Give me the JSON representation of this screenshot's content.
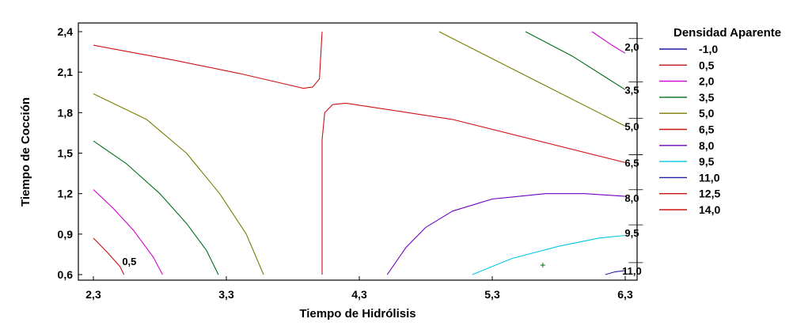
{
  "chart_data": {
    "type": "contour",
    "title": "",
    "xlabel": "Tiempo de Hidrólisis",
    "ylabel": "Tiempo de Cocción",
    "xlim": [
      2.3,
      6.3
    ],
    "ylim": [
      0.6,
      2.4
    ],
    "x_ticks": [
      "2,3",
      "3,3",
      "4,3",
      "5,3",
      "6,3"
    ],
    "x_tick_values": [
      2.3,
      3.3,
      4.3,
      5.3,
      6.3
    ],
    "y_ticks": [
      "2,4",
      "2,1",
      "1,8",
      "1,5",
      "1,2",
      "0,9",
      "0,6"
    ],
    "y_tick_values": [
      2.4,
      2.1,
      1.8,
      1.5,
      1.2,
      0.9,
      0.6
    ],
    "legend": {
      "title": "Densidad Aparente",
      "position": "right",
      "entries": [
        {
          "label": "-1,0",
          "color": "#1a1aa0"
        },
        {
          "label": "0,5",
          "color": "#cc1111"
        },
        {
          "label": "2,0",
          "color": "#d000d0"
        },
        {
          "label": "3,5",
          "color": "#006e1a"
        },
        {
          "label": "5,0",
          "color": "#7a7a00"
        },
        {
          "label": "6,5",
          "color": "#cc1111"
        },
        {
          "label": "8,0",
          "color": "#7000c0"
        },
        {
          "label": "9,5",
          "color": "#00c8e6"
        },
        {
          "label": "11,0",
          "color": "#2020b0"
        },
        {
          "label": "12,5",
          "color": "#cc1111"
        },
        {
          "label": "14,0",
          "color": "#cc1111"
        }
      ]
    },
    "contours": [
      {
        "level": "0,5",
        "color": "#cc1111",
        "points": [
          [
            2.3,
            0.87
          ],
          [
            2.4,
            0.77
          ],
          [
            2.5,
            0.66
          ],
          [
            2.53,
            0.6
          ]
        ]
      },
      {
        "level": "2,0",
        "color": "#d000d0",
        "points": [
          [
            2.3,
            1.23
          ],
          [
            2.45,
            1.09
          ],
          [
            2.6,
            0.93
          ],
          [
            2.75,
            0.73
          ],
          [
            2.82,
            0.6
          ]
        ]
      },
      {
        "level": "3,5",
        "color": "#006e1a",
        "points": [
          [
            2.3,
            1.59
          ],
          [
            2.55,
            1.42
          ],
          [
            2.8,
            1.2
          ],
          [
            3.0,
            0.98
          ],
          [
            3.15,
            0.78
          ],
          [
            3.24,
            0.6
          ]
        ]
      },
      {
        "level": "5,0",
        "color": "#7a7a00",
        "points": [
          [
            2.3,
            1.94
          ],
          [
            2.7,
            1.75
          ],
          [
            3.0,
            1.5
          ],
          [
            3.25,
            1.2
          ],
          [
            3.45,
            0.9
          ],
          [
            3.58,
            0.6
          ]
        ]
      },
      {
        "level": "6,5",
        "color": "#cc1111",
        "points": [
          [
            2.3,
            2.3
          ],
          [
            2.9,
            2.19
          ],
          [
            3.4,
            2.09
          ],
          [
            3.75,
            2.01
          ],
          [
            3.88,
            1.98
          ],
          [
            3.95,
            1.99
          ],
          [
            4.0,
            2.05
          ],
          [
            4.02,
            2.4
          ]
        ]
      },
      {
        "level": "6,5",
        "color": "#cc1111",
        "points": [
          [
            4.02,
            0.6
          ],
          [
            4.02,
            1.6
          ],
          [
            4.04,
            1.8
          ],
          [
            4.1,
            1.86
          ],
          [
            4.2,
            1.87
          ],
          [
            5.0,
            1.75
          ],
          [
            6.3,
            1.43
          ]
        ]
      },
      {
        "level": "5,0",
        "color": "#7a7a00",
        "points": [
          [
            4.9,
            2.4
          ],
          [
            5.2,
            2.25
          ],
          [
            5.7,
            2.0
          ],
          [
            6.3,
            1.7
          ]
        ]
      },
      {
        "level": "3,5",
        "color": "#006e1a",
        "points": [
          [
            5.55,
            2.4
          ],
          [
            5.9,
            2.22
          ],
          [
            6.3,
            1.97
          ]
        ]
      },
      {
        "level": "2,0",
        "color": "#d000d0",
        "points": [
          [
            6.05,
            2.4
          ],
          [
            6.2,
            2.3
          ],
          [
            6.3,
            2.24
          ]
        ]
      },
      {
        "level": "8,0",
        "color": "#7000c0",
        "points": [
          [
            4.51,
            0.6
          ],
          [
            4.65,
            0.8
          ],
          [
            4.8,
            0.95
          ],
          [
            5.0,
            1.07
          ],
          [
            5.3,
            1.16
          ],
          [
            5.7,
            1.2
          ],
          [
            6.0,
            1.2
          ],
          [
            6.3,
            1.18
          ]
        ]
      },
      {
        "level": "9,5",
        "color": "#00c8e6",
        "points": [
          [
            5.15,
            0.6
          ],
          [
            5.45,
            0.72
          ],
          [
            5.8,
            0.81
          ],
          [
            6.1,
            0.87
          ],
          [
            6.3,
            0.89
          ]
        ]
      },
      {
        "level": "11,0",
        "color": "#2020b0",
        "points": [
          [
            6.15,
            0.6
          ],
          [
            6.22,
            0.62
          ],
          [
            6.3,
            0.63
          ]
        ]
      }
    ],
    "contour_labels": [
      {
        "text": "0,5",
        "x": 2.57,
        "y": 0.7
      },
      {
        "text": "2,0",
        "x": 6.35,
        "y": 2.29
      },
      {
        "text": "3,5",
        "x": 6.35,
        "y": 1.97
      },
      {
        "text": "5,0",
        "x": 6.35,
        "y": 1.7
      },
      {
        "text": "6,5",
        "x": 6.35,
        "y": 1.43
      },
      {
        "text": "8,0",
        "x": 6.35,
        "y": 1.17
      },
      {
        "text": "9,5",
        "x": 6.35,
        "y": 0.91
      },
      {
        "text": "11,0",
        "x": 6.35,
        "y": 0.63
      }
    ],
    "marker": {
      "x": 5.68,
      "y": 0.67,
      "color": "#007a00"
    }
  }
}
